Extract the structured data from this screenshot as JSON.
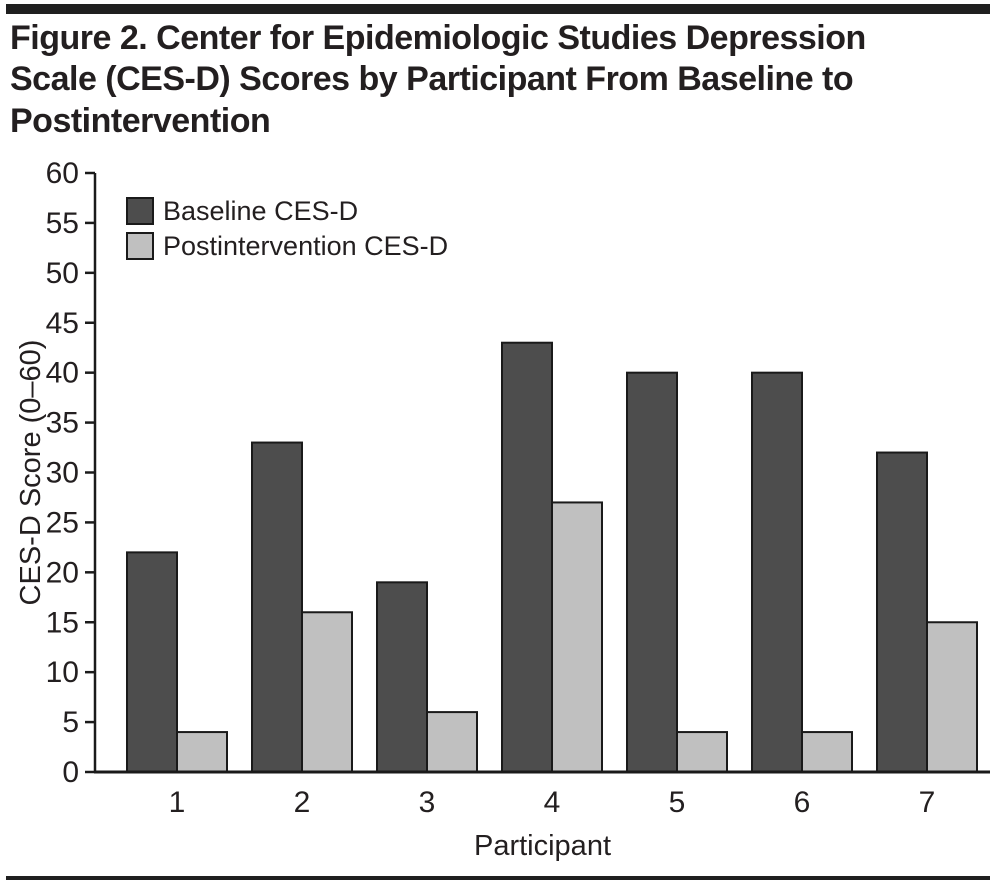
{
  "figure": {
    "title_lines": [
      "Figure 2. Center for Epidemiologic Studies Depression",
      "Scale (CES-D) Scores by Participant From Baseline to",
      "Postintervention"
    ]
  },
  "chart_data": {
    "type": "bar",
    "title": "Figure 2. Center for Epidemiologic Studies Depression Scale (CES-D) Scores by Participant From Baseline to Postintervention",
    "xlabel": "Participant",
    "ylabel": "CES-D Score (0–60)",
    "ylim": [
      0,
      60
    ],
    "ytick_step": 5,
    "grid": false,
    "legend_position": "top-left",
    "categories": [
      "1",
      "2",
      "3",
      "4",
      "5",
      "6",
      "7"
    ],
    "series": [
      {
        "name": "Baseline CES-D",
        "color": "#4d4d4d",
        "values": [
          22,
          33,
          19,
          43,
          40,
          40,
          32
        ]
      },
      {
        "name": "Postintervention CES-D",
        "color": "#c0c0c0",
        "values": [
          4,
          16,
          6,
          27,
          4,
          4,
          15
        ]
      }
    ],
    "bar_outline_color": "#1a1a1a",
    "axis_color": "#1a1a1a",
    "text_color": "#231f20"
  }
}
